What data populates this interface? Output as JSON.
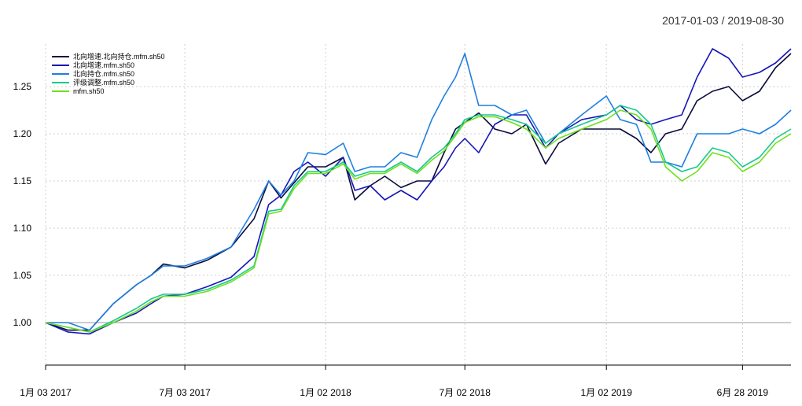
{
  "chart_data": {
    "type": "line",
    "title": "",
    "date_range": "2017-01-03 / 2019-08-30",
    "xlabel": "",
    "ylabel": "",
    "x_start": "2017-01-03",
    "x_end": "2019-08-30",
    "ylim": [
      0.965,
      1.295
    ],
    "y_ticks": [
      {
        "value": 1.0,
        "label": "1.00"
      },
      {
        "value": 1.05,
        "label": "1.05"
      },
      {
        "value": 1.1,
        "label": "1.10"
      },
      {
        "value": 1.15,
        "label": "1.15"
      },
      {
        "value": 1.2,
        "label": "1.20"
      },
      {
        "value": 1.25,
        "label": "1.25"
      }
    ],
    "x_ticks": [
      {
        "date": "2017-01-03",
        "label": "1月 03 2017"
      },
      {
        "date": "2017-07-03",
        "label": "7月 03 2017"
      },
      {
        "date": "2018-01-02",
        "label": "1月 02 2018"
      },
      {
        "date": "2018-07-02",
        "label": "7月 02 2018"
      },
      {
        "date": "2019-01-02",
        "label": "1月 02 2019"
      },
      {
        "date": "2019-06-28",
        "label": "6月 28 2019"
      }
    ],
    "grid": true,
    "legend_position": "top-left",
    "x": [
      "2017-01-03",
      "2017-02-01",
      "2017-03-01",
      "2017-04-01",
      "2017-05-01",
      "2017-05-20",
      "2017-06-05",
      "2017-07-03",
      "2017-08-01",
      "2017-09-01",
      "2017-10-01",
      "2017-10-20",
      "2017-11-05",
      "2017-11-22",
      "2017-12-10",
      "2018-01-02",
      "2018-01-25",
      "2018-02-09",
      "2018-03-01",
      "2018-03-20",
      "2018-04-10",
      "2018-05-01",
      "2018-05-20",
      "2018-06-05",
      "2018-06-20",
      "2018-07-02",
      "2018-07-20",
      "2018-08-10",
      "2018-09-01",
      "2018-09-20",
      "2018-10-15",
      "2018-11-01",
      "2018-12-01",
      "2019-01-02",
      "2019-01-20",
      "2019-02-10",
      "2019-03-01",
      "2019-03-20",
      "2019-04-10",
      "2019-04-30",
      "2019-05-20",
      "2019-06-10",
      "2019-06-28",
      "2019-07-20",
      "2019-08-10",
      "2019-08-30"
    ],
    "series": [
      {
        "name": "北向增速.北向持仓.mfm.sh50",
        "color": "#0b0b3b",
        "values": [
          1.0,
          0.992,
          0.992,
          1.02,
          1.04,
          1.05,
          1.062,
          1.058,
          1.066,
          1.08,
          1.11,
          1.15,
          1.132,
          1.148,
          1.165,
          1.165,
          1.175,
          1.13,
          1.145,
          1.155,
          1.143,
          1.15,
          1.15,
          1.18,
          1.205,
          1.212,
          1.222,
          1.205,
          1.2,
          1.21,
          1.168,
          1.19,
          1.205,
          1.205,
          1.205,
          1.195,
          1.18,
          1.2,
          1.205,
          1.235,
          1.245,
          1.25,
          1.235,
          1.245,
          1.27,
          1.285
        ]
      },
      {
        "name": "北向增速.mfm.sh50",
        "color": "#1515b8",
        "values": [
          1.0,
          0.99,
          0.988,
          1.0,
          1.01,
          1.02,
          1.028,
          1.03,
          1.038,
          1.048,
          1.07,
          1.125,
          1.135,
          1.16,
          1.17,
          1.155,
          1.175,
          1.14,
          1.145,
          1.13,
          1.14,
          1.13,
          1.15,
          1.165,
          1.185,
          1.195,
          1.18,
          1.21,
          1.22,
          1.22,
          1.185,
          1.2,
          1.215,
          1.22,
          1.23,
          1.215,
          1.21,
          1.215,
          1.22,
          1.26,
          1.29,
          1.28,
          1.26,
          1.265,
          1.275,
          1.29
        ]
      },
      {
        "name": "北向持仓.mfm.sh50",
        "color": "#1e7fe0",
        "values": [
          1.0,
          1.0,
          0.992,
          1.02,
          1.04,
          1.05,
          1.06,
          1.06,
          1.068,
          1.08,
          1.12,
          1.15,
          1.135,
          1.15,
          1.18,
          1.178,
          1.19,
          1.16,
          1.165,
          1.165,
          1.18,
          1.175,
          1.215,
          1.24,
          1.26,
          1.285,
          1.23,
          1.23,
          1.22,
          1.225,
          1.19,
          1.2,
          1.22,
          1.24,
          1.215,
          1.21,
          1.17,
          1.17,
          1.165,
          1.2,
          1.2,
          1.2,
          1.205,
          1.2,
          1.21,
          1.225
        ]
      },
      {
        "name": "评级调整.mfm.sh50",
        "color": "#18c98c",
        "values": [
          1.0,
          0.995,
          0.99,
          1.002,
          1.015,
          1.025,
          1.03,
          1.03,
          1.035,
          1.045,
          1.06,
          1.118,
          1.12,
          1.145,
          1.16,
          1.16,
          1.17,
          1.155,
          1.16,
          1.16,
          1.17,
          1.16,
          1.175,
          1.185,
          1.2,
          1.215,
          1.22,
          1.22,
          1.215,
          1.21,
          1.19,
          1.2,
          1.21,
          1.22,
          1.23,
          1.225,
          1.21,
          1.17,
          1.16,
          1.165,
          1.185,
          1.18,
          1.165,
          1.175,
          1.195,
          1.205
        ]
      },
      {
        "name": "mfm.sh50",
        "color": "#6ee01e",
        "values": [
          1.0,
          0.995,
          0.99,
          1.0,
          1.012,
          1.022,
          1.028,
          1.028,
          1.033,
          1.043,
          1.058,
          1.115,
          1.118,
          1.142,
          1.158,
          1.158,
          1.168,
          1.152,
          1.158,
          1.158,
          1.168,
          1.158,
          1.172,
          1.182,
          1.198,
          1.212,
          1.218,
          1.218,
          1.212,
          1.205,
          1.185,
          1.195,
          1.205,
          1.215,
          1.225,
          1.22,
          1.205,
          1.165,
          1.15,
          1.16,
          1.18,
          1.175,
          1.16,
          1.17,
          1.19,
          1.2
        ]
      }
    ]
  }
}
